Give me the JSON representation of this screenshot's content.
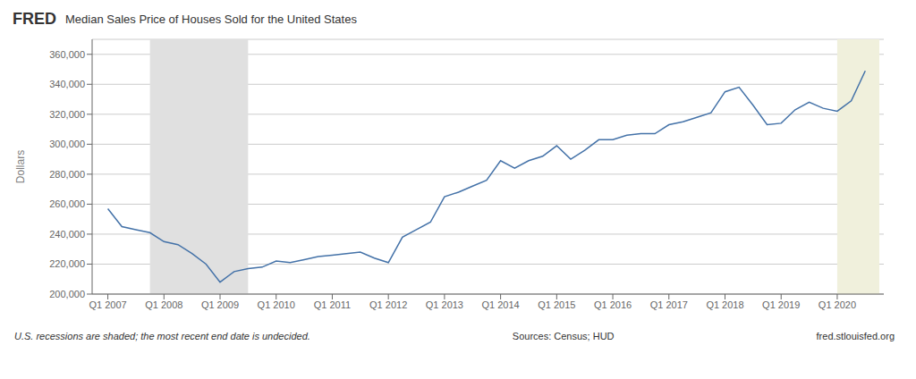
{
  "chart_data": {
    "type": "line",
    "title": "Median Sales Price of Houses Sold for the United States",
    "ylabel": "Dollars",
    "color": "#4472a8",
    "grid": true,
    "x": [
      2007.0,
      2007.25,
      2007.5,
      2007.75,
      2008.0,
      2008.25,
      2008.5,
      2008.75,
      2009.0,
      2009.25,
      2009.5,
      2009.75,
      2010.0,
      2010.25,
      2010.5,
      2010.75,
      2011.0,
      2011.25,
      2011.5,
      2011.75,
      2012.0,
      2012.25,
      2012.5,
      2012.75,
      2013.0,
      2013.25,
      2013.5,
      2013.75,
      2014.0,
      2014.25,
      2014.5,
      2014.75,
      2015.0,
      2015.25,
      2015.5,
      2015.75,
      2016.0,
      2016.25,
      2016.5,
      2016.75,
      2017.0,
      2017.25,
      2017.5,
      2017.75,
      2018.0,
      2018.25,
      2018.5,
      2018.75,
      2019.0,
      2019.25,
      2019.5,
      2019.75,
      2020.0,
      2020.25,
      2020.5
    ],
    "values": [
      257000,
      245000,
      243000,
      241000,
      235000,
      233000,
      227000,
      220000,
      208000,
      215000,
      217000,
      218000,
      222000,
      221000,
      223000,
      225000,
      226000,
      227000,
      228000,
      224000,
      221000,
      238000,
      243000,
      248000,
      265000,
      268000,
      272000,
      276000,
      289000,
      284000,
      289000,
      292000,
      299000,
      290000,
      296000,
      303000,
      303000,
      306000,
      307000,
      307000,
      313000,
      315000,
      318000,
      321000,
      335000,
      338000,
      326000,
      313000,
      314000,
      323000,
      328000,
      324000,
      322000,
      329000,
      349000
    ],
    "xlim": [
      2006.72,
      2020.83
    ],
    "xticks": [
      {
        "value": 2007.0,
        "label": "Q1 2007"
      },
      {
        "value": 2008.0,
        "label": "Q1 2008"
      },
      {
        "value": 2009.0,
        "label": "Q1 2009"
      },
      {
        "value": 2010.0,
        "label": "Q1 2010"
      },
      {
        "value": 2011.0,
        "label": "Q1 2011"
      },
      {
        "value": 2012.0,
        "label": "Q1 2012"
      },
      {
        "value": 2013.0,
        "label": "Q1 2013"
      },
      {
        "value": 2014.0,
        "label": "Q1 2014"
      },
      {
        "value": 2015.0,
        "label": "Q1 2015"
      },
      {
        "value": 2016.0,
        "label": "Q1 2016"
      },
      {
        "value": 2017.0,
        "label": "Q1 2017"
      },
      {
        "value": 2018.0,
        "label": "Q1 2018"
      },
      {
        "value": 2019.0,
        "label": "Q1 2019"
      },
      {
        "value": 2020.0,
        "label": "Q1 2020"
      }
    ],
    "ylim": [
      200000,
      370000
    ],
    "yticks": [
      {
        "value": 200000,
        "label": "200,000"
      },
      {
        "value": 220000,
        "label": "220,000"
      },
      {
        "value": 240000,
        "label": "240,000"
      },
      {
        "value": 260000,
        "label": "260,000"
      },
      {
        "value": 280000,
        "label": "280,000"
      },
      {
        "value": 300000,
        "label": "300,000"
      },
      {
        "value": 320000,
        "label": "320,000"
      },
      {
        "value": 340000,
        "label": "340,000"
      },
      {
        "value": 360000,
        "label": "360,000"
      }
    ],
    "shaded_regions": [
      {
        "start": 2020.0,
        "end": 2020.75,
        "color": "#f0f0dc"
      },
      {
        "start": 2007.75,
        "end": 2009.5,
        "color": "#e0e0e0"
      }
    ],
    "annotations": [
      "FRED",
      "U.S. recessions are shaded; the most recent end date is undecided.",
      "Sources: Census; HUD",
      "fred.stlouisfed.org"
    ]
  }
}
